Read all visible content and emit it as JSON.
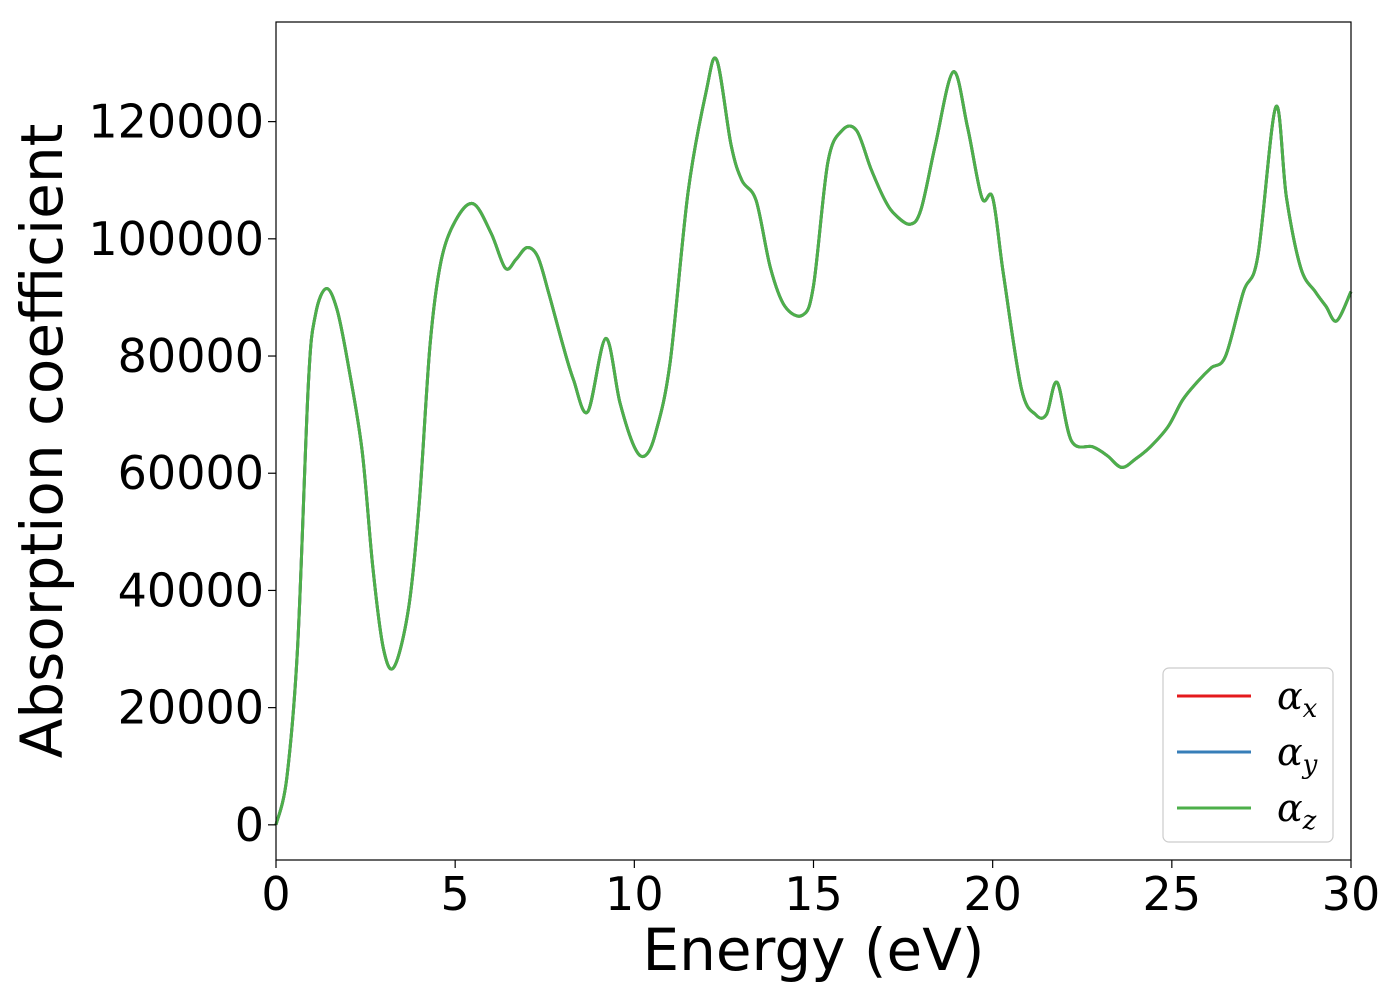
{
  "chart_data": {
    "type": "line",
    "title": "",
    "xlabel": "Energy (eV)",
    "ylabel": "Absorption coefficient",
    "xlim": [
      0,
      30
    ],
    "ylim": [
      -6000,
      137000
    ],
    "xticks": [
      0,
      5,
      10,
      15,
      20,
      25,
      30
    ],
    "yticks": [
      0,
      20000,
      40000,
      60000,
      80000,
      100000,
      120000
    ],
    "grid": false,
    "legend_position": "lower right",
    "series": [
      {
        "name": "α_x",
        "symbol": "α",
        "subscript": "x",
        "color": "#e41a1c",
        "x": [
          0,
          0.3,
          0.6,
          0.9,
          1.1,
          1.4,
          1.7,
          2.0,
          2.4,
          2.7,
          3.0,
          3.3,
          3.7,
          4.0,
          4.3,
          4.6,
          5.0,
          5.5,
          6.0,
          6.4,
          6.7,
          7.0,
          7.3,
          7.6,
          8.0,
          8.3,
          8.7,
          9.2,
          9.6,
          10.0,
          10.3,
          10.6,
          11.0,
          11.5,
          12.0,
          12.3,
          12.7,
          13.0,
          13.4,
          13.8,
          14.2,
          14.7,
          15.0,
          15.4,
          15.8,
          16.2,
          16.6,
          17.0,
          17.3,
          17.7,
          18.0,
          18.4,
          18.9,
          19.3,
          19.7,
          20.0,
          20.3,
          20.8,
          21.2,
          21.5,
          21.8,
          22.2,
          22.8,
          23.2,
          23.6,
          24.0,
          24.4,
          24.9,
          25.3,
          25.7,
          26.1,
          26.5,
          27.0,
          27.4,
          27.9,
          28.2,
          28.6,
          29.0,
          29.3,
          29.6,
          30.0
        ],
        "y": [
          0,
          8000,
          30000,
          75000,
          87000,
          91500,
          88000,
          79000,
          64000,
          44000,
          30000,
          27000,
          37000,
          55000,
          82000,
          96000,
          103000,
          106000,
          101000,
          95000,
          96500,
          98500,
          97000,
          91000,
          82000,
          76000,
          70500,
          83000,
          72000,
          64500,
          63000,
          67000,
          79000,
          108000,
          125000,
          130500,
          116000,
          110000,
          106500,
          95000,
          88500,
          87000,
          92000,
          113000,
          118500,
          118500,
          112000,
          106500,
          104000,
          102500,
          105000,
          116000,
          128500,
          119000,
          107000,
          107000,
          94000,
          74500,
          70000,
          70000,
          75500,
          65500,
          64500,
          63000,
          61000,
          62500,
          64500,
          68000,
          72500,
          75500,
          78000,
          80000,
          91000,
          97000,
          122500,
          107000,
          95000,
          91000,
          88500,
          86000,
          91000
        ]
      },
      {
        "name": "α_y",
        "symbol": "α",
        "subscript": "y",
        "color": "#377eb8",
        "x": [
          0,
          0.3,
          0.6,
          0.9,
          1.1,
          1.4,
          1.7,
          2.0,
          2.4,
          2.7,
          3.0,
          3.3,
          3.7,
          4.0,
          4.3,
          4.6,
          5.0,
          5.5,
          6.0,
          6.4,
          6.7,
          7.0,
          7.3,
          7.6,
          8.0,
          8.3,
          8.7,
          9.2,
          9.6,
          10.0,
          10.3,
          10.6,
          11.0,
          11.5,
          12.0,
          12.3,
          12.7,
          13.0,
          13.4,
          13.8,
          14.2,
          14.7,
          15.0,
          15.4,
          15.8,
          16.2,
          16.6,
          17.0,
          17.3,
          17.7,
          18.0,
          18.4,
          18.9,
          19.3,
          19.7,
          20.0,
          20.3,
          20.8,
          21.2,
          21.5,
          21.8,
          22.2,
          22.8,
          23.2,
          23.6,
          24.0,
          24.4,
          24.9,
          25.3,
          25.7,
          26.1,
          26.5,
          27.0,
          27.4,
          27.9,
          28.2,
          28.6,
          29.0,
          29.3,
          29.6,
          30.0
        ],
        "y": [
          0,
          8000,
          30000,
          75000,
          87000,
          91500,
          88000,
          79000,
          64000,
          44000,
          30000,
          27000,
          37000,
          55000,
          82000,
          96000,
          103000,
          106000,
          101000,
          95000,
          96500,
          98500,
          97000,
          91000,
          82000,
          76000,
          70500,
          83000,
          72000,
          64500,
          63000,
          67000,
          79000,
          108000,
          125000,
          130500,
          116000,
          110000,
          106500,
          95000,
          88500,
          87000,
          92000,
          113000,
          118500,
          118500,
          112000,
          106500,
          104000,
          102500,
          105000,
          116000,
          128500,
          119000,
          107000,
          107000,
          94000,
          74500,
          70000,
          70000,
          75500,
          65500,
          64500,
          63000,
          61000,
          62500,
          64500,
          68000,
          72500,
          75500,
          78000,
          80000,
          91000,
          97000,
          122500,
          107000,
          95000,
          91000,
          88500,
          86000,
          91000
        ]
      },
      {
        "name": "α_z",
        "symbol": "α",
        "subscript": "z",
        "color": "#4daf4a",
        "x": [
          0,
          0.3,
          0.6,
          0.9,
          1.1,
          1.4,
          1.7,
          2.0,
          2.4,
          2.7,
          3.0,
          3.3,
          3.7,
          4.0,
          4.3,
          4.6,
          5.0,
          5.5,
          6.0,
          6.4,
          6.7,
          7.0,
          7.3,
          7.6,
          8.0,
          8.3,
          8.7,
          9.2,
          9.6,
          10.0,
          10.3,
          10.6,
          11.0,
          11.5,
          12.0,
          12.3,
          12.7,
          13.0,
          13.4,
          13.8,
          14.2,
          14.7,
          15.0,
          15.4,
          15.8,
          16.2,
          16.6,
          17.0,
          17.3,
          17.7,
          18.0,
          18.4,
          18.9,
          19.3,
          19.7,
          20.0,
          20.3,
          20.8,
          21.2,
          21.5,
          21.8,
          22.2,
          22.8,
          23.2,
          23.6,
          24.0,
          24.4,
          24.9,
          25.3,
          25.7,
          26.1,
          26.5,
          27.0,
          27.4,
          27.9,
          28.2,
          28.6,
          29.0,
          29.3,
          29.6,
          30.0
        ],
        "y": [
          0,
          8000,
          30000,
          75000,
          87000,
          91500,
          88000,
          79000,
          64000,
          44000,
          30000,
          27000,
          37000,
          55000,
          82000,
          96000,
          103000,
          106000,
          101000,
          95000,
          96500,
          98500,
          97000,
          91000,
          82000,
          76000,
          70500,
          83000,
          72000,
          64500,
          63000,
          67000,
          79000,
          108000,
          125000,
          130500,
          116000,
          110000,
          106500,
          95000,
          88500,
          87000,
          92000,
          113000,
          118500,
          118500,
          112000,
          106500,
          104000,
          102500,
          105000,
          116000,
          128500,
          119000,
          107000,
          107000,
          94000,
          74500,
          70000,
          70000,
          75500,
          65500,
          64500,
          63000,
          61000,
          62500,
          64500,
          68000,
          72500,
          75500,
          78000,
          80000,
          91000,
          97000,
          122500,
          107000,
          95000,
          91000,
          88500,
          86000,
          91000
        ]
      }
    ]
  }
}
